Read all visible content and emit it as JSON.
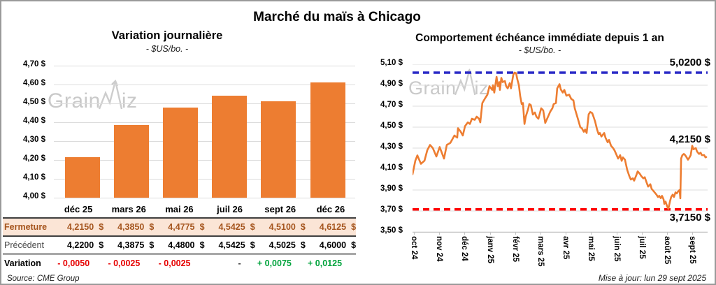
{
  "page": {
    "title": "Marché du maïs à Chicago",
    "source": "Source: CME Group",
    "updated": "Mise à jour: lun 29 sept 2025"
  },
  "watermark": {
    "left_part": "Grain",
    "right_part": "iz"
  },
  "table": {
    "columns": [
      "déc 25",
      "mars 26",
      "mai 26",
      "juil 26",
      "sept 26",
      "déc 26"
    ],
    "currency_suffix": "$",
    "rows": [
      {
        "label": "Fermeture",
        "style": "rclose",
        "currency": true,
        "values": [
          "4,2150",
          "4,3850",
          "4,4775",
          "4,5425",
          "4,5100",
          "4,6125"
        ]
      },
      {
        "label": "Précédent",
        "style": "rprev",
        "currency": true,
        "values": [
          "4,2200",
          "4,3875",
          "4,4800",
          "4,5425",
          "4,5025",
          "4,6000"
        ]
      },
      {
        "label": "Variation",
        "style": "rvar",
        "currency": false,
        "values": [
          "- 0,0050",
          "- 0,0025",
          "- 0,0025",
          "-",
          "+ 0,0075",
          "+ 0,0125"
        ],
        "value_colors": [
          "neg",
          "neg",
          "neg",
          "zero",
          "pos",
          "pos"
        ]
      }
    ]
  },
  "chart_data": [
    {
      "type": "bar",
      "title": "Variation journalière",
      "subtitle": "- $US/bo. -",
      "categories": [
        "déc 25",
        "mars 26",
        "mai 26",
        "juil 26",
        "sept 26",
        "déc 26"
      ],
      "values": [
        4.215,
        4.385,
        4.4775,
        4.5425,
        4.51,
        4.6125
      ],
      "ylim": [
        4.0,
        4.7
      ],
      "ytick_step": 0.1,
      "bar_color": "#ED7D31",
      "grid": true
    },
    {
      "type": "line",
      "title": "Comportement échéance immédiate depuis 1 an",
      "subtitle": "- $US/bo. -",
      "x_categories": [
        "oct 24",
        "nov 24",
        "déc 24",
        "janv 25",
        "févr 25",
        "mars 25",
        "avr 25",
        "mai 25",
        "juin 25",
        "juil 25",
        "août 25",
        "sept 25"
      ],
      "ylim": [
        3.5,
        5.1
      ],
      "ytick_step": 0.2,
      "line_color": "#ED7D31",
      "grid": true,
      "ref_high": {
        "value": 5.02,
        "label": "5,0200 $",
        "color": "#2929C6"
      },
      "ref_low": {
        "value": 3.715,
        "label": "3,7150 $",
        "color": "#FF0000"
      },
      "last": {
        "value": 4.215,
        "label": "4,2150 $",
        "color": "#000000"
      },
      "points": [
        [
          0,
          4.05
        ],
        [
          0.11,
          4.18
        ],
        [
          0.19,
          4.23
        ],
        [
          0.33,
          4.15
        ],
        [
          0.47,
          4.18
        ],
        [
          0.58,
          4.28
        ],
        [
          0.69,
          4.33
        ],
        [
          0.8,
          4.3
        ],
        [
          0.94,
          4.22
        ],
        [
          1.07,
          4.31
        ],
        [
          1.24,
          4.2
        ],
        [
          1.35,
          4.33
        ],
        [
          1.49,
          4.35
        ],
        [
          1.65,
          4.42
        ],
        [
          1.76,
          4.4
        ],
        [
          1.79,
          4.49
        ],
        [
          1.9,
          4.455
        ],
        [
          1.98,
          4.42
        ],
        [
          2.07,
          4.51
        ],
        [
          2.18,
          4.545
        ],
        [
          2.26,
          4.53
        ],
        [
          2.34,
          4.58
        ],
        [
          2.45,
          4.57
        ],
        [
          2.53,
          4.6
        ],
        [
          2.62,
          4.58
        ],
        [
          2.67,
          4.545
        ],
        [
          2.75,
          4.73
        ],
        [
          2.87,
          4.78
        ],
        [
          2.95,
          4.81
        ],
        [
          3.03,
          4.89
        ],
        [
          3.14,
          4.855
        ],
        [
          3.17,
          4.9
        ],
        [
          3.22,
          4.83
        ],
        [
          3.31,
          4.98
        ],
        [
          3.36,
          4.89
        ],
        [
          3.42,
          4.93
        ],
        [
          3.44,
          4.855
        ],
        [
          3.5,
          4.97
        ],
        [
          3.55,
          4.93
        ],
        [
          3.64,
          4.94
        ],
        [
          3.69,
          4.89
        ],
        [
          3.75,
          4.87
        ],
        [
          3.83,
          4.92
        ],
        [
          3.88,
          4.87
        ],
        [
          3.97,
          5.0
        ],
        [
          4.02,
          5.02
        ],
        [
          4.08,
          5.015
        ],
        [
          4.13,
          4.955
        ],
        [
          4.19,
          4.9
        ],
        [
          4.24,
          4.8
        ],
        [
          4.3,
          4.72
        ],
        [
          4.35,
          4.73
        ],
        [
          4.41,
          4.53
        ],
        [
          4.46,
          4.6
        ],
        [
          4.55,
          4.67
        ],
        [
          4.6,
          4.72
        ],
        [
          4.66,
          4.71
        ],
        [
          4.74,
          4.62
        ],
        [
          4.82,
          4.64
        ],
        [
          4.88,
          4.6
        ],
        [
          4.96,
          4.58
        ],
        [
          5.07,
          4.68
        ],
        [
          5.15,
          4.66
        ],
        [
          5.23,
          4.54
        ],
        [
          5.34,
          4.6
        ],
        [
          5.43,
          4.65
        ],
        [
          5.51,
          4.68
        ],
        [
          5.56,
          4.72
        ],
        [
          5.65,
          4.73
        ],
        [
          5.7,
          4.87
        ],
        [
          5.79,
          4.91
        ],
        [
          5.84,
          4.86
        ],
        [
          5.92,
          4.83
        ],
        [
          5.98,
          4.855
        ],
        [
          6.06,
          4.8
        ],
        [
          6.17,
          4.81
        ],
        [
          6.25,
          4.77
        ],
        [
          6.34,
          4.755
        ],
        [
          6.39,
          4.68
        ],
        [
          6.45,
          4.633
        ],
        [
          6.53,
          4.567
        ],
        [
          6.61,
          4.5
        ],
        [
          6.67,
          4.49
        ],
        [
          6.75,
          4.455
        ],
        [
          6.8,
          4.478
        ],
        [
          6.86,
          4.444
        ],
        [
          6.94,
          4.622
        ],
        [
          7.0,
          4.645
        ],
        [
          7.08,
          4.633
        ],
        [
          7.13,
          4.6
        ],
        [
          7.19,
          4.556
        ],
        [
          7.27,
          4.478
        ],
        [
          7.33,
          4.433
        ],
        [
          7.38,
          4.444
        ],
        [
          7.44,
          4.411
        ],
        [
          7.55,
          4.444
        ],
        [
          7.6,
          4.4
        ],
        [
          7.69,
          4.355
        ],
        [
          7.74,
          4.378
        ],
        [
          7.82,
          4.322
        ],
        [
          7.9,
          4.3
        ],
        [
          7.96,
          4.278
        ],
        [
          8.04,
          4.233
        ],
        [
          8.1,
          4.2
        ],
        [
          8.18,
          4.233
        ],
        [
          8.24,
          4.178
        ],
        [
          8.29,
          4.211
        ],
        [
          8.37,
          4.189
        ],
        [
          8.4,
          4.156
        ],
        [
          8.46,
          4.089
        ],
        [
          8.54,
          4.033
        ],
        [
          8.6,
          4.0
        ],
        [
          8.68,
          4.011
        ],
        [
          8.73,
          3.989
        ],
        [
          8.82,
          4.044
        ],
        [
          8.87,
          4.078
        ],
        [
          8.95,
          4.056
        ],
        [
          9.01,
          4.033
        ],
        [
          9.09,
          4.011
        ],
        [
          9.15,
          4.022
        ],
        [
          9.23,
          3.967
        ],
        [
          9.28,
          3.933
        ],
        [
          9.37,
          3.955
        ],
        [
          9.42,
          3.911
        ],
        [
          9.5,
          3.889
        ],
        [
          9.61,
          3.856
        ],
        [
          9.67,
          3.833
        ],
        [
          9.72,
          3.844
        ],
        [
          9.78,
          3.822
        ],
        [
          9.83,
          3.844
        ],
        [
          9.89,
          3.811
        ],
        [
          9.92,
          3.767
        ],
        [
          9.97,
          3.789
        ],
        [
          10.03,
          3.744
        ],
        [
          10.08,
          3.72
        ],
        [
          10.14,
          3.789
        ],
        [
          10.19,
          3.833
        ],
        [
          10.25,
          3.856
        ],
        [
          10.3,
          3.833
        ],
        [
          10.36,
          3.878
        ],
        [
          10.41,
          3.867
        ],
        [
          10.47,
          3.889
        ],
        [
          10.52,
          3.9
        ],
        [
          10.55,
          3.82
        ],
        [
          10.58,
          4.2
        ],
        [
          10.63,
          4.233
        ],
        [
          10.69,
          4.244
        ],
        [
          10.74,
          4.233
        ],
        [
          10.8,
          4.211
        ],
        [
          10.85,
          4.189
        ],
        [
          10.91,
          4.21
        ],
        [
          10.96,
          4.233
        ],
        [
          11.02,
          4.322
        ],
        [
          11.07,
          4.289
        ],
        [
          11.16,
          4.3
        ],
        [
          11.21,
          4.267
        ],
        [
          11.29,
          4.244
        ],
        [
          11.35,
          4.256
        ],
        [
          11.4,
          4.233
        ],
        [
          11.49,
          4.233
        ],
        [
          11.54,
          4.211
        ],
        [
          11.57,
          4.215
        ]
      ]
    }
  ]
}
